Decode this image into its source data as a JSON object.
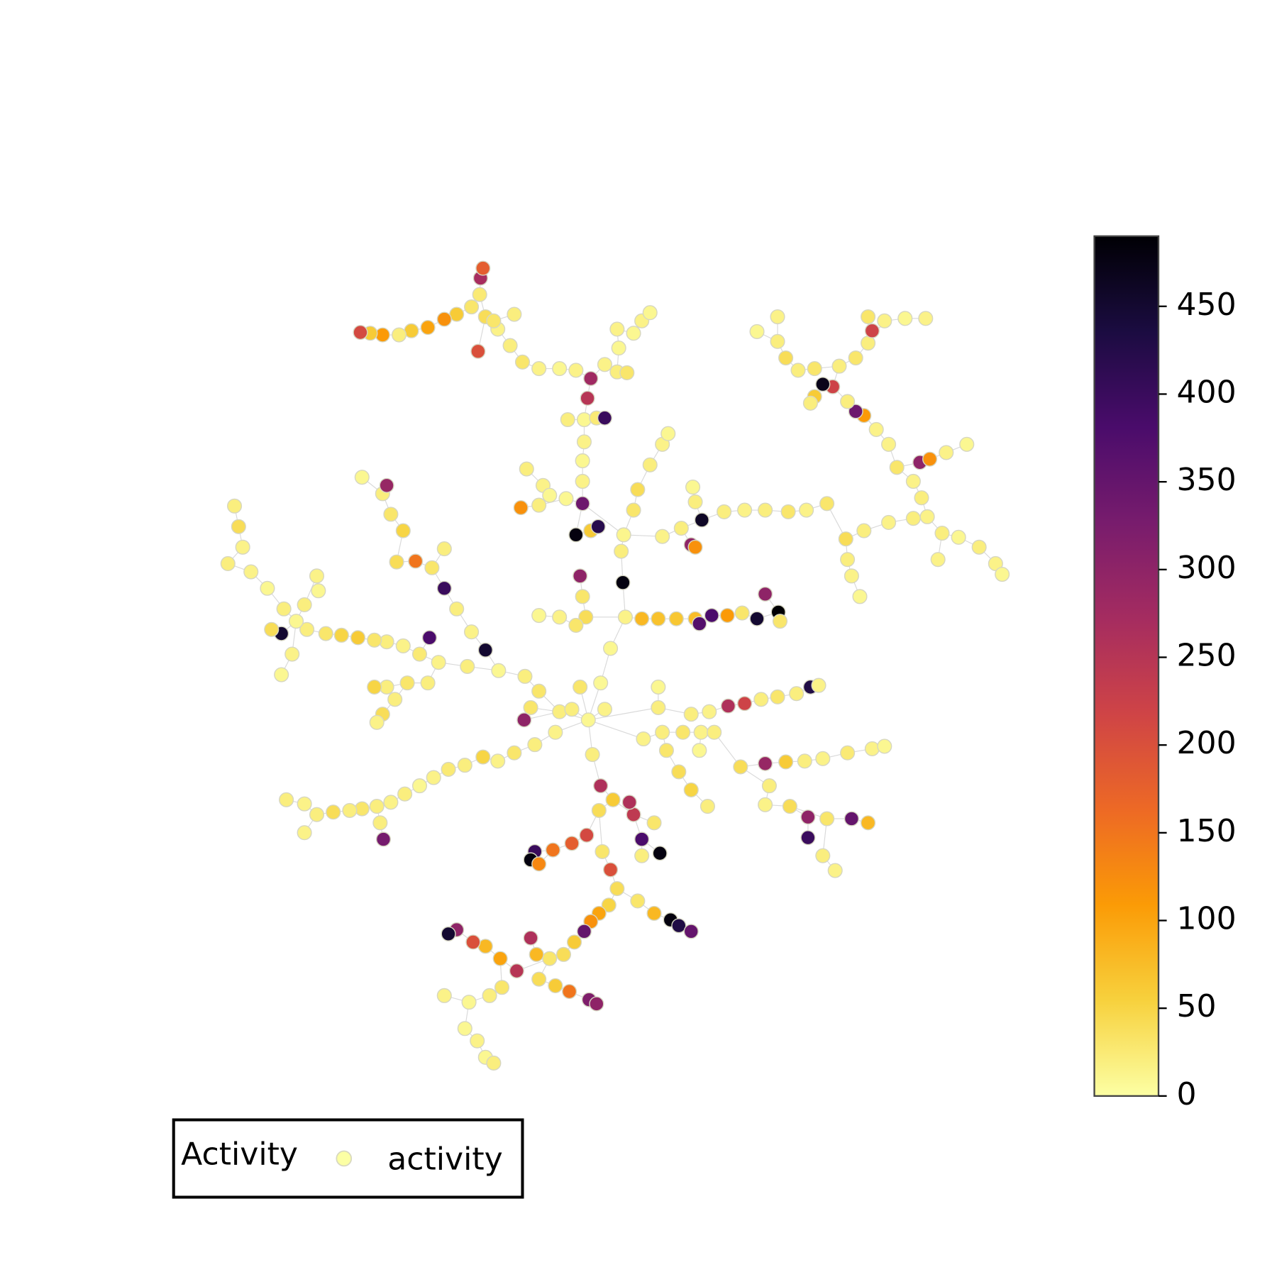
{
  "chart_data": {
    "type": "network",
    "nodes": {
      "x": [
        715,
        730,
        742,
        760,
        757,
        755,
        758,
        770,
        775,
        790,
        805,
        812,
        780,
        800,
        822,
        845,
        850,
        865,
        884,
        902,
        920,
        946,
        930,
        948,
        708,
        708,
        708,
        710,
        710,
        690,
        725,
        735,
        714,
        718,
        700,
        680,
        655,
        635,
        620,
        605,
        590,
        583,
        584,
        587,
        573,
        555,
        540,
        520,
        500,
        485,
        465,
        450,
        438,
        581,
        600,
        625,
        735,
        750,
        762,
        752,
        750,
        770,
        780,
        790,
        680,
        655,
        638,
        606,
        568,
        533,
        510,
        490,
        470,
        455,
        435,
        415,
        396,
        373,
        360,
        342,
        330,
        345,
        325,
        305,
        277,
        295,
        290,
        285,
        370,
        385,
        387,
        355,
        342,
        522,
        590,
        573,
        540,
        555,
        525,
        505,
        482,
        540,
        490,
        475,
        465,
        440,
        470,
        520,
        495,
        470,
        455,
        480,
        465,
        458,
        675,
        650,
        625,
        605,
        587,
        565,
        545,
        527,
        510,
        492,
        475,
        458,
        440,
        425,
        405,
        385,
        370,
        348,
        462,
        466,
        370,
        637,
        645,
        720,
        730,
        745,
        728,
        713,
        695,
        672,
        650,
        645,
        655,
        732,
        742,
        750,
        740,
        728,
        718,
        710,
        698,
        685,
        668,
        652,
        645,
        655,
        675,
        692,
        716,
        725,
        628,
        608,
        590,
        575,
        555,
        545,
        610,
        595,
        570,
        540,
        565,
        580,
        590,
        600,
        775,
        795,
        815,
        825,
        840,
        770,
        765,
        780,
        802,
        780,
        795,
        782,
        805,
        830,
        852,
        868,
        850,
        810,
        825,
        840,
        860,
        900,
        930,
        955,
        978,
        1000,
        1030,
        1060,
        1075,
        935,
        930,
        960,
        982,
        982,
        1005,
        1035,
        1055,
        1000,
        1015,
        800,
        800,
        840,
        862,
        885,
        905,
        925,
        945,
        968,
        985,
        995,
        805,
        828,
        840,
        845,
        853,
        845,
        842,
        880,
        905,
        930,
        958,
        980,
        1005,
        1028,
        1030,
        1035,
        1045,
        1050,
        1080,
        1110,
        1127,
        1145,
        1140,
        1165,
        1190,
        1210,
        1218,
        1120,
        1110,
        1090,
        1118,
        1130,
        1150,
        1175,
        1080,
        1065,
        1050,
        1040,
        1030,
        1012,
        1000,
        990,
        985,
        1020,
        1040,
        1055,
        1075,
        1100,
        1125,
        1060,
        990,
        970,
        955,
        945,
        945,
        920,
        1055,
        705,
        708,
        712,
        700,
        680,
        655,
        640,
        660,
        668,
        633,
        688,
        700,
        718,
        727,
        655,
        705,
        735,
        695
      ],
      "y": [
        875,
        830,
        788,
        750,
        708,
        670,
        650,
        620,
        595,
        565,
        540,
        527,
        752,
        752,
        752,
        752,
        758,
        748,
        748,
        745,
        752,
        744,
        722,
        755,
        612,
        585,
        560,
        537,
        510,
        510,
        508,
        508,
        484,
        460,
        450,
        448,
        448,
        440,
        420,
        400,
        385,
        358,
        338,
        326,
        373,
        382,
        388,
        398,
        402,
        407,
        407,
        405,
        404,
        427,
        390,
        382,
        443,
        452,
        453,
        423,
        400,
        405,
        390,
        380,
        865,
        840,
        822,
        815,
        810,
        805,
        795,
        785,
        780,
        778,
        775,
        772,
        770,
        765,
        755,
        770,
        765,
        740,
        715,
        695,
        685,
        665,
        640,
        615,
        735,
        700,
        718,
        795,
        820,
        775,
        790,
        768,
        715,
        740,
        690,
        682,
        683,
        667,
        645,
        625,
        600,
        580,
        590,
        830,
        830,
        835,
        835,
        850,
        868,
        878,
        890,
        905,
        915,
        925,
        920,
        930,
        935,
        945,
        955,
        965,
        975,
        980,
        983,
        985,
        987,
        990,
        977,
        972,
        1000,
        1020,
        1012,
        875,
        860,
        917,
        955,
        972,
        985,
        1015,
        1025,
        1033,
        1035,
        1045,
        1050,
        1035,
        1057,
        1080,
        1100,
        1110,
        1120,
        1132,
        1145,
        1160,
        1165,
        1160,
        1140,
        1190,
        1198,
        1205,
        1215,
        1220,
        1180,
        1165,
        1150,
        1145,
        1130,
        1135,
        1200,
        1210,
        1218,
        1210,
        1250,
        1265,
        1285,
        1292,
        1095,
        1110,
        1118,
        1125,
        1132,
        990,
        975,
        1020,
        1037,
        1040,
        1000,
        898,
        890,
        890,
        890,
        890,
        912,
        912,
        938,
        960,
        980,
        932,
        928,
        926,
        925,
        922,
        915,
        910,
        907,
        955,
        978,
        980,
        993,
        1018,
        995,
        995,
        1000,
        1040,
        1058,
        860,
        835,
        868,
        865,
        858,
        855,
        850,
        847,
        843,
        835,
        833,
        652,
        642,
        662,
        665,
        632,
        610,
        592,
        622,
        620,
        620,
        622,
        620,
        612,
        655,
        680,
        700,
        725,
        645,
        635,
        630,
        628,
        648,
        680,
        653,
        665,
        685,
        698,
        605,
        585,
        568,
        562,
        558,
        550,
        540,
        540,
        522,
        505,
        500,
        488,
        470,
        467,
        482,
        490,
        445,
        435,
        417,
        390,
        387,
        387,
        402,
        448,
        450,
        435,
        415,
        385,
        403,
        385,
        700,
        725,
        750,
        760,
        750,
        748,
        570,
        590,
        602,
        617,
        606,
        650,
        645,
        640,
        614,
        835,
        862,
        862
      ],
      "values": [
        10,
        8,
        10,
        15,
        480,
        20,
        12,
        30,
        40,
        20,
        15,
        10,
        80,
        70,
        65,
        75,
        370,
        380,
        110,
        30,
        450,
        490,
        300,
        30,
        340,
        15,
        10,
        15,
        10,
        20,
        25,
        400,
        250,
        280,
        15,
        10,
        15,
        30,
        20,
        15,
        40,
        25,
        270,
        180,
        30,
        60,
        120,
        100,
        60,
        20,
        110,
        60,
        210,
        200,
        30,
        20,
        15,
        20,
        30,
        10,
        15,
        10,
        15,
        10,
        20,
        30,
        20,
        10,
        20,
        15,
        25,
        15,
        20,
        30,
        60,
        50,
        30,
        20,
        10,
        450,
        40,
        20,
        10,
        15,
        20,
        15,
        40,
        20,
        20,
        15,
        10,
        15,
        10,
        380,
        450,
        15,
        400,
        20,
        30,
        150,
        40,
        20,
        50,
        30,
        20,
        10,
        290,
        20,
        30,
        20,
        50,
        20,
        40,
        15,
        15,
        20,
        30,
        15,
        50,
        20,
        25,
        15,
        10,
        20,
        15,
        20,
        30,
        20,
        40,
        20,
        15,
        20,
        20,
        330,
        15,
        300,
        30,
        20,
        260,
        60,
        40,
        210,
        180,
        150,
        400,
        480,
        130,
        30,
        200,
        40,
        50,
        100,
        120,
        350,
        60,
        40,
        30,
        80,
        260,
        40,
        60,
        150,
        320,
        300,
        250,
        100,
        80,
        200,
        300,
        450,
        30,
        20,
        10,
        15,
        10,
        15,
        10,
        20,
        30,
        80,
        480,
        430,
        350,
        240,
        260,
        380,
        480,
        20,
        30,
        15,
        20,
        30,
        15,
        20,
        10,
        30,
        40,
        50,
        20,
        40,
        290,
        60,
        20,
        15,
        25,
        15,
        10,
        20,
        15,
        40,
        300,
        400,
        30,
        350,
        80,
        20,
        15,
        20,
        10,
        20,
        15,
        260,
        220,
        20,
        30,
        20,
        430,
        15,
        15,
        20,
        300,
        120,
        460,
        20,
        10,
        20,
        15,
        20,
        30,
        15,
        30,
        40,
        20,
        15,
        10,
        20,
        15,
        20,
        15,
        20,
        15,
        10,
        20,
        15,
        10,
        20,
        15,
        30,
        300,
        120,
        15,
        10,
        15,
        15,
        110,
        340,
        20,
        220,
        470,
        60,
        20,
        20,
        30,
        20,
        15,
        10,
        15,
        220,
        30,
        20,
        40,
        20,
        15,
        10,
        30,
        300,
        30,
        40,
        30,
        15,
        10,
        20,
        15,
        10,
        120,
        10,
        480,
        60,
        420,
        20,
        30,
        15,
        20
      ],
      "parent": [
        null,
        0,
        1,
        2,
        3,
        4,
        5,
        6,
        7,
        8,
        9,
        10,
        3,
        12,
        13,
        14,
        15,
        16,
        17,
        18,
        19,
        20,
        21,
        21,
        6,
        24,
        25,
        26,
        27,
        28,
        28,
        30,
        28,
        32,
        33,
        34,
        35,
        36,
        37,
        38,
        39,
        40,
        41,
        42,
        41,
        44,
        45,
        46,
        47,
        48,
        49,
        50,
        51,
        40,
        40,
        54,
        33,
        56,
        57,
        57,
        59,
        60,
        61,
        62,
        0,
        64,
        65,
        66,
        67,
        68,
        69,
        70,
        71,
        72,
        73,
        74,
        75,
        76,
        77,
        78,
        79,
        78,
        81,
        82,
        83,
        84,
        85,
        86,
        78,
        88,
        89,
        78,
        91,
        70,
        67,
        94,
        97,
        95,
        96,
        98,
        99,
        98,
        100,
        102,
        103,
        104,
        104,
        69,
        107,
        108,
        109,
        108,
        111,
        112,
        0,
        114,
        115,
        116,
        117,
        118,
        119,
        120,
        121,
        122,
        123,
        124,
        125,
        126,
        127,
        128,
        129,
        130,
        125,
        132,
        129,
        64,
        64,
        0,
        137,
        138,
        139,
        140,
        141,
        142,
        143,
        144,
        143,
        140,
        147,
        148,
        149,
        150,
        151,
        152,
        153,
        154,
        155,
        156,
        157,
        156,
        159,
        160,
        161,
        162,
        156,
        164,
        165,
        166,
        167,
        168,
        165,
        170,
        171,
        172,
        172,
        174,
        175,
        176,
        149,
        178,
        179,
        180,
        181,
        139,
        183,
        183,
        185,
        185,
        183,
        0,
        189,
        190,
        191,
        192,
        192,
        190,
        195,
        196,
        197,
        193,
        199,
        200,
        201,
        202,
        203,
        204,
        205,
        199,
        207,
        208,
        209,
        210,
        209,
        212,
        213,
        212,
        215,
        0,
        217,
        217,
        219,
        220,
        221,
        222,
        223,
        224,
        225,
        226,
        6,
        228,
        229,
        230,
        229,
        232,
        233,
        232,
        235,
        236,
        237,
        238,
        239,
        240,
        241,
        242,
        243,
        241,
        245,
        246,
        247,
        248,
        249,
        249,
        251,
        252,
        253,
        248,
        255,
        256,
        257,
        258,
        259,
        260,
        257,
        262,
        263,
        264,
        265,
        266,
        267,
        268,
        269,
        267,
        271,
        272,
        273,
        274,
        275,
        273,
        271,
        278,
        279,
        280,
        281,
        281,
        273,
        286,
        287,
        3,
        287,
        288,
        289,
        292,
        293,
        299,
        299,
        24,
        24,
        296,
        297,
        295,
        0,
        0,
        0
      ]
    },
    "colormap": [
      "#fcffa4",
      "#f7d13d",
      "#fb9b06",
      "#ed6925",
      "#cf4446",
      "#a52c60",
      "#781c6d",
      "#4a0c6b",
      "#1b0c41",
      "#000004"
    ],
    "colorbar": {
      "lim": [
        0,
        490
      ],
      "ticks": [
        0,
        50,
        100,
        150,
        200,
        250,
        300,
        350,
        400,
        450
      ]
    },
    "legend": {
      "title": "Activity",
      "label": "activity",
      "position": "lower left"
    }
  }
}
